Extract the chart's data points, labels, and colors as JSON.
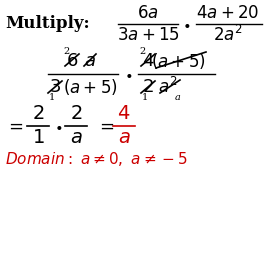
{
  "bg_color": "#ffffff",
  "text_color": "#000000",
  "red_color": "#cc0000",
  "line1_label": "Multiply:",
  "line1_f1_num": "$6a$",
  "line1_f1_den": "$3a+15$",
  "line1_bullet": "$\\bullet$",
  "line1_f2_num": "$4a+20$",
  "line1_f2_den": "$2a^2$",
  "domain_text": "Domain: $a \\neq 0$, $a \\neq -5$"
}
